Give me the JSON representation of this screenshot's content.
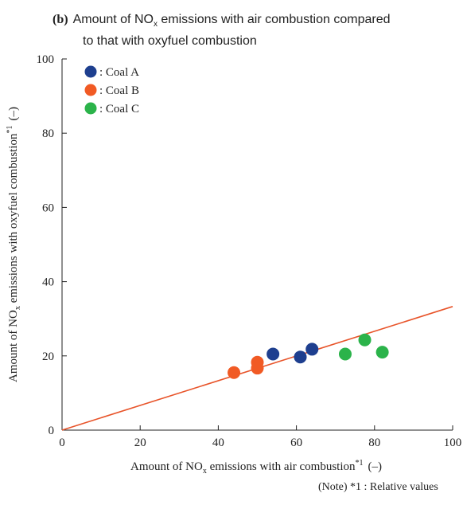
{
  "chart_data": {
    "type": "scatter",
    "panel_label": "(b)",
    "title_line1_pre": "Amount of NO",
    "title_line1_sub": "x",
    "title_line1_post": " emissions with air combustion compared",
    "title_line2": "to that with oxyfuel combustion",
    "xlabel_pre": "Amount of NO",
    "xlabel_sub": "x",
    "xlabel_post": " emissions with air combustion",
    "xlabel_sup": "*1",
    "xlabel_unit": "(–)",
    "ylabel_pre": "Amount of NO",
    "ylabel_sub": "x",
    "ylabel_post": " emissions with oxyfuel combustion",
    "ylabel_sup": "*1",
    "ylabel_unit": "(–)",
    "xlim": [
      0,
      100
    ],
    "ylim": [
      0,
      100
    ],
    "xticks": [
      "0",
      "20",
      "40",
      "60",
      "80",
      "100"
    ],
    "yticks": [
      "0",
      "20",
      "40",
      "60",
      "80",
      "100"
    ],
    "grid": false,
    "legend_position": "top-left",
    "note": "(Note)  *1 : Relative values",
    "trend_line": {
      "x": [
        0,
        100
      ],
      "y": [
        0,
        33.3
      ],
      "color": "#e8542a"
    },
    "series": [
      {
        "name": ": Coal A",
        "color": "#1e3f8f",
        "x": [
          54,
          61,
          64
        ],
        "y": [
          20.5,
          19.7,
          21.8
        ]
      },
      {
        "name": ": Coal B",
        "color": "#f15a24",
        "x": [
          44,
          50,
          50
        ],
        "y": [
          15.5,
          16.7,
          18.3
        ]
      },
      {
        "name": ": Coal C",
        "color": "#2bb34a",
        "x": [
          72.5,
          77.5,
          82
        ],
        "y": [
          20.5,
          24.3,
          21
        ]
      }
    ]
  }
}
